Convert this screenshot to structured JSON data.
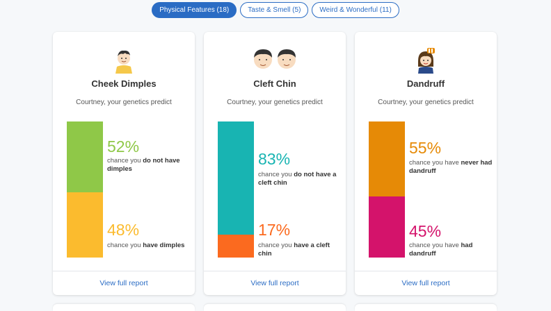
{
  "tabs": [
    {
      "label": "Physical Features (18)",
      "active": true
    },
    {
      "label": "Taste & Smell (5)",
      "active": false
    },
    {
      "label": "Weird & Wonderful (11)",
      "active": false
    }
  ],
  "cards": [
    {
      "title": "Cheek Dimples",
      "subtitle": "Courtney, your genetics predict",
      "illustration": "boy-face-icon",
      "top": {
        "percent": "52%",
        "value": 52,
        "color": "#8fc848",
        "desc_pre": "chance you ",
        "desc_bold": "do not have dimples"
      },
      "bottom": {
        "percent": "48%",
        "value": 48,
        "color": "#fbbb2e",
        "desc_pre": "chance you ",
        "desc_bold": "have dimples"
      },
      "link": "View full report"
    },
    {
      "title": "Cleft Chin",
      "subtitle": "Courtney, your genetics predict",
      "illustration": "two-faces-icon",
      "top": {
        "percent": "83%",
        "value": 83,
        "color": "#18b4b2",
        "desc_pre": "chance you ",
        "desc_bold": "do not have a cleft chin"
      },
      "bottom": {
        "percent": "17%",
        "value": 17,
        "color": "#fb6a1f",
        "desc_pre": "chance you ",
        "desc_bold": "have a cleft chin"
      },
      "link": "View full report"
    },
    {
      "title": "Dandruff",
      "subtitle": "Courtney, your genetics predict",
      "illustration": "woman-face-icon",
      "top": {
        "percent": "55%",
        "value": 55,
        "color": "#e68a06",
        "desc_pre": "chance you have ",
        "desc_bold": "never had dandruff"
      },
      "bottom": {
        "percent": "45%",
        "value": 45,
        "color": "#d4136b",
        "desc_pre": "chance you have ",
        "desc_bold": "had dandruff"
      },
      "link": "View full report"
    }
  ]
}
